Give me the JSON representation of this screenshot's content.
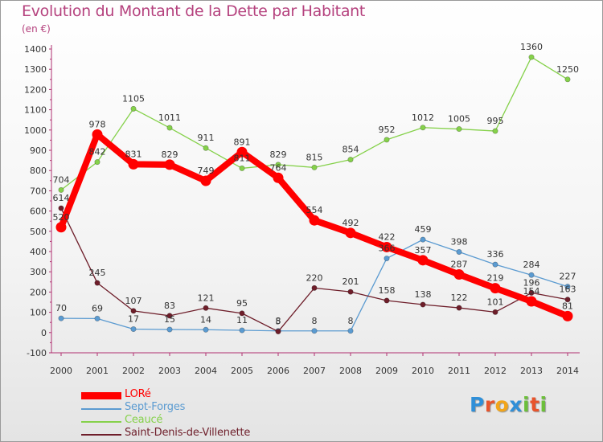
{
  "chart_data": {
    "type": "line",
    "title": "Evolution du Montant de la Dette par Habitant",
    "subtitle": "(en €)",
    "x": [
      "2000",
      "2001",
      "2002",
      "2003",
      "2004",
      "2005",
      "2006",
      "2007",
      "2008",
      "2009",
      "2010",
      "2011",
      "2012",
      "2013",
      "2014"
    ],
    "ylim": [
      -100,
      1400
    ],
    "yticks": [
      -100,
      0,
      100,
      200,
      300,
      400,
      500,
      600,
      700,
      800,
      900,
      1000,
      1100,
      1200,
      1300,
      1400
    ],
    "grid": false,
    "legend_position": "bottom-left",
    "series": [
      {
        "name": "LORé",
        "color": "#ff0000",
        "values": [
          520,
          978,
          831,
          829,
          749,
          891,
          764,
          554,
          492,
          422,
          357,
          287,
          219,
          154,
          81
        ]
      },
      {
        "name": "Sept-Forges",
        "color": "#5b9bd1",
        "values": [
          70,
          69,
          17,
          15,
          14,
          11,
          8,
          8,
          8,
          366,
          459,
          398,
          336,
          284,
          227
        ]
      },
      {
        "name": "Ceaucé",
        "color": "#85d14a",
        "values": [
          704,
          842,
          1105,
          1011,
          911,
          811,
          829,
          815,
          854,
          952,
          1012,
          1005,
          995,
          1360,
          1250
        ]
      },
      {
        "name": "Saint-Denis-de-Villenette",
        "color": "#6e1e2a",
        "values": [
          614,
          245,
          107,
          83,
          121,
          95,
          5,
          220,
          201,
          158,
          138,
          122,
          101,
          196,
          163
        ]
      }
    ]
  },
  "logo": {
    "text": "Proxiti",
    "letters": [
      {
        "ch": "P",
        "color": "#2f8fd8"
      },
      {
        "ch": "r",
        "color": "#e8542c"
      },
      {
        "ch": "o",
        "color": "#f2a51a"
      },
      {
        "ch": "x",
        "color": "#2f8fd8"
      },
      {
        "ch": "i",
        "color": "#6cbf3a"
      },
      {
        "ch": "t",
        "color": "#e8542c"
      },
      {
        "ch": "i",
        "color": "#6cbf3a"
      }
    ]
  }
}
